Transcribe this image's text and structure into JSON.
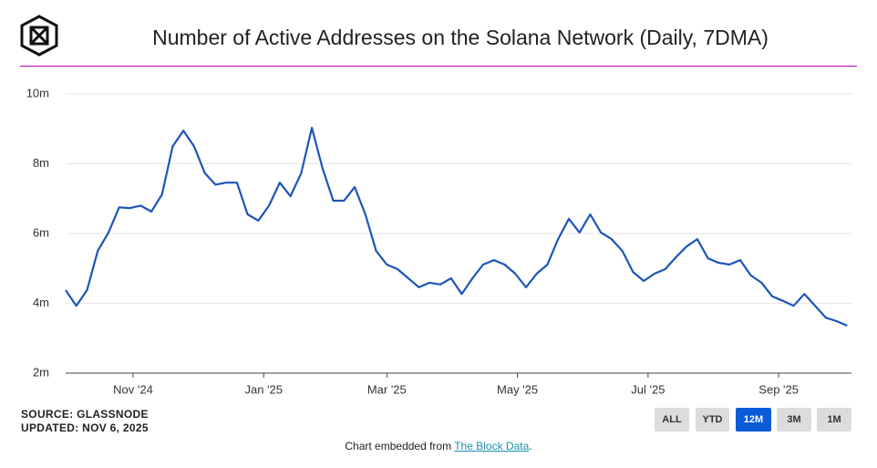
{
  "chart_data": {
    "type": "line",
    "title": "Number of Active Addresses on the Solana Network (Daily, 7DMA)",
    "values": [
      4.38,
      3.93,
      4.38,
      5.5,
      6.03,
      6.75,
      6.73,
      6.8,
      6.63,
      7.12,
      8.5,
      8.95,
      8.5,
      7.73,
      7.4,
      7.46,
      7.46,
      6.55,
      6.37,
      6.8,
      7.46,
      7.07,
      7.73,
      9.03,
      7.86,
      6.94,
      6.94,
      7.33,
      6.55,
      5.5,
      5.11,
      4.98,
      4.72,
      4.46,
      4.59,
      4.54,
      4.72,
      4.27,
      4.72,
      5.11,
      5.24,
      5.11,
      4.85,
      4.46,
      4.85,
      5.11,
      5.84,
      6.42,
      6.03,
      6.55,
      6.03,
      5.84,
      5.5,
      4.9,
      4.64,
      4.85,
      4.98,
      5.32,
      5.63,
      5.84,
      5.29,
      5.16,
      5.11,
      5.24,
      4.8,
      4.59,
      4.2,
      4.07,
      3.93,
      4.27,
      3.93,
      3.59,
      3.49,
      3.36
    ],
    "color": "#1c55b9",
    "ylim": [
      2,
      10
    ],
    "yticks": [
      {
        "value": 2,
        "label": "2m"
      },
      {
        "value": 4,
        "label": "4m"
      },
      {
        "value": 6,
        "label": "6m"
      },
      {
        "value": 8,
        "label": "8m"
      },
      {
        "value": 10,
        "label": "10m"
      }
    ],
    "xlim": [
      0,
      73.4
    ],
    "xticks": [
      {
        "value": 6.3,
        "label": "Nov '24"
      },
      {
        "value": 18.5,
        "label": "Jan '25"
      },
      {
        "value": 30,
        "label": "Mar '25"
      },
      {
        "value": 42.2,
        "label": "May '25"
      },
      {
        "value": 54.4,
        "label": "Jul '25"
      },
      {
        "value": 66.6,
        "label": "Sep '25"
      }
    ],
    "grid": true,
    "source": "SOURCE: GLASSNODE",
    "updated": "UPDATED: NOV 6, 2025",
    "range_buttons": [
      "ALL",
      "YTD",
      "12M",
      "3M",
      "1M"
    ],
    "active_button": 2,
    "embed_prefix": "Chart embedded from ",
    "embed_link": "The Block Data",
    "embed_suffix": "."
  }
}
